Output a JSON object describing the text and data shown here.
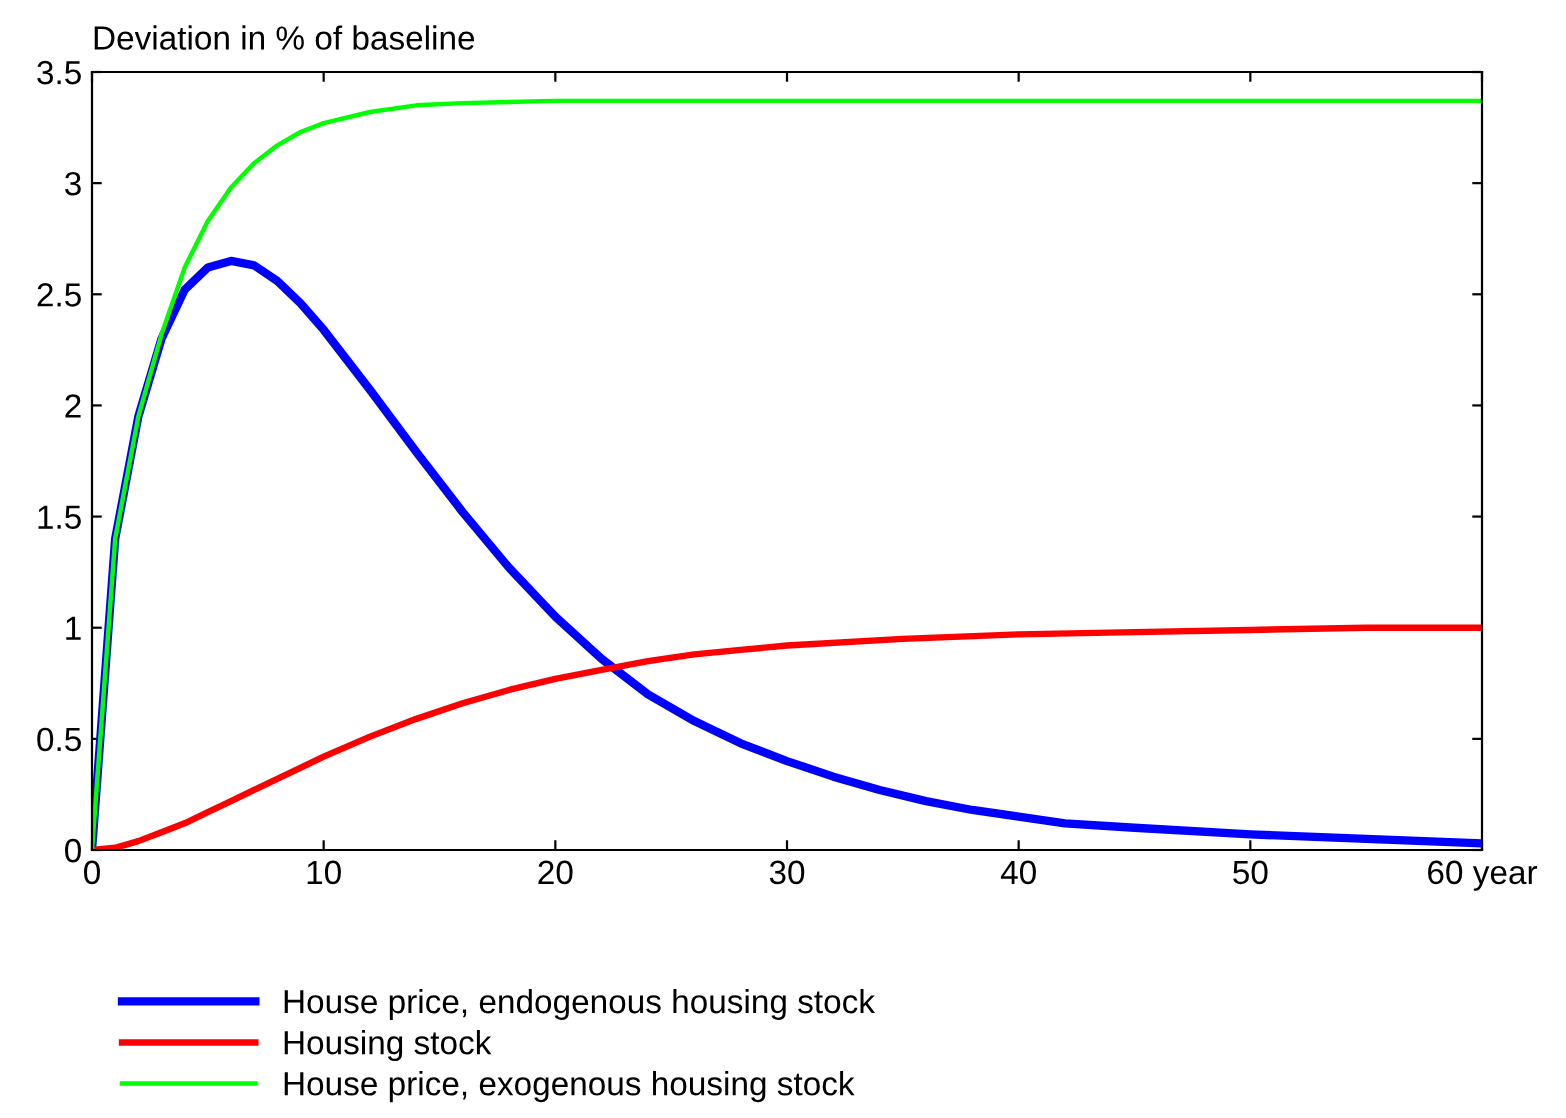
{
  "chart_data": {
    "type": "line",
    "ylabel": "Deviation in % of baseline",
    "xlim": [
      0,
      60
    ],
    "ylim": [
      0,
      3.5
    ],
    "xticks": [
      0,
      10,
      20,
      30,
      40,
      50,
      {
        "value": 60,
        "label": "60 year"
      }
    ],
    "yticks": [
      0,
      0.5,
      1,
      1.5,
      2,
      2.5,
      3,
      3.5
    ],
    "grid": false,
    "legend": "bottom left",
    "marker": "none",
    "line_style": "solid",
    "series": [
      {
        "name": "House price, endogenous housing stock",
        "color": "#0000ff",
        "x": [
          0,
          1,
          2,
          3,
          4,
          5,
          6,
          7,
          8,
          9,
          10,
          12,
          14,
          16,
          18,
          20,
          22,
          24,
          26,
          28,
          30,
          32,
          34,
          36,
          38,
          40,
          42,
          45,
          50,
          55,
          60
        ],
        "values": [
          0,
          1.4,
          1.95,
          2.3,
          2.52,
          2.62,
          2.65,
          2.63,
          2.56,
          2.46,
          2.34,
          2.07,
          1.79,
          1.52,
          1.27,
          1.05,
          0.86,
          0.7,
          0.58,
          0.48,
          0.4,
          0.33,
          0.27,
          0.22,
          0.18,
          0.15,
          0.12,
          0.1,
          0.07,
          0.05,
          0.03
        ]
      },
      {
        "name": "Housing stock",
        "color": "#ff0000",
        "x": [
          0,
          1,
          2,
          3,
          4,
          5,
          6,
          7,
          8,
          10,
          12,
          14,
          16,
          18,
          20,
          22,
          24,
          26,
          28,
          30,
          35,
          40,
          45,
          50,
          55,
          60
        ],
        "values": [
          0,
          0.01,
          0.04,
          0.08,
          0.12,
          0.17,
          0.22,
          0.27,
          0.32,
          0.42,
          0.51,
          0.59,
          0.66,
          0.72,
          0.77,
          0.81,
          0.85,
          0.88,
          0.9,
          0.92,
          0.95,
          0.97,
          0.98,
          0.99,
          1.0,
          1.0
        ]
      },
      {
        "name": "House price, exogenous housing stock",
        "color": "#00ff00",
        "x": [
          0,
          1,
          2,
          3,
          4,
          5,
          6,
          7,
          8,
          9,
          10,
          12,
          14,
          16,
          20,
          30,
          60
        ],
        "values": [
          0,
          1.4,
          1.95,
          2.32,
          2.62,
          2.83,
          2.98,
          3.09,
          3.17,
          3.23,
          3.27,
          3.32,
          3.35,
          3.36,
          3.37,
          3.37,
          3.37
        ]
      }
    ]
  }
}
